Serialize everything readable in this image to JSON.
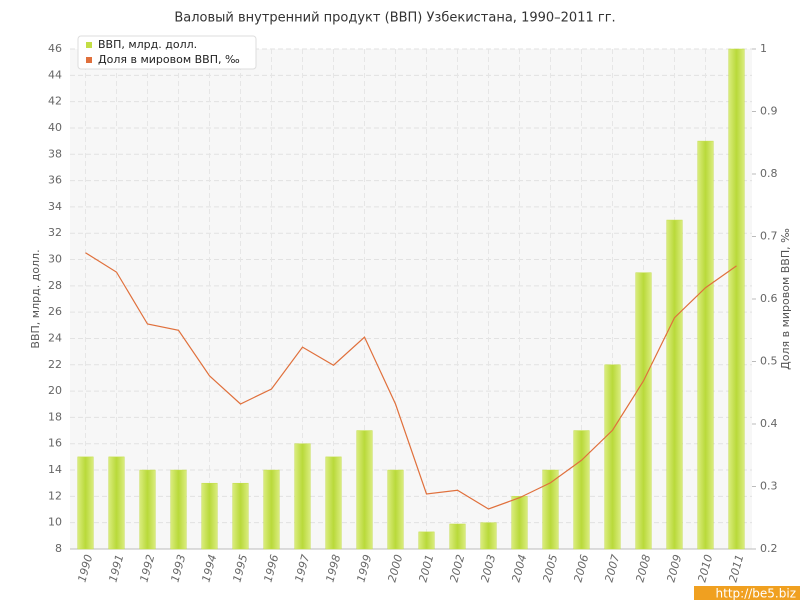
{
  "chart_data": {
    "type": "bar",
    "title": "Валовый внутренний продукт (ВВП) Узбекистана, 1990–2011 гг.",
    "y_label": "ВВП, млрд. долл.",
    "y2_label": "Доля в мировом ВВП, ‰",
    "categories": [
      "1990",
      "1991",
      "1992",
      "1993",
      "1994",
      "1995",
      "1996",
      "1997",
      "1998",
      "1999",
      "2000",
      "2001",
      "2002",
      "2003",
      "2004",
      "2005",
      "2006",
      "2007",
      "2008",
      "2009",
      "2010",
      "2011"
    ],
    "series": [
      {
        "name": "ВВП, млрд. долл.",
        "type": "bar",
        "color": "#c3de45",
        "values": [
          15,
          15,
          14,
          14,
          13,
          13,
          14,
          16,
          15,
          17,
          14,
          9.3,
          9.9,
          10,
          12,
          14,
          17,
          22,
          29,
          33,
          39,
          46
        ]
      },
      {
        "name": "Доля в мировом ВВП, ‰",
        "type": "line",
        "axis": "y2",
        "color": "#e0703c",
        "values": [
          0.674,
          0.643,
          0.56,
          0.55,
          0.477,
          0.432,
          0.456,
          0.523,
          0.494,
          0.539,
          0.432,
          0.288,
          0.294,
          0.264,
          0.282,
          0.306,
          0.342,
          0.39,
          0.469,
          0.57,
          0.618,
          0.653
        ]
      }
    ],
    "ylim": [
      8,
      46
    ],
    "yticks": [
      8,
      10,
      12,
      14,
      16,
      18,
      20,
      22,
      24,
      26,
      28,
      30,
      32,
      34,
      36,
      38,
      40,
      42,
      44,
      46
    ],
    "y2lim": [
      0.2,
      1
    ],
    "y2ticks": [
      0.2,
      0.3,
      0.4,
      0.5,
      0.6,
      0.7,
      0.8,
      0.9,
      1
    ],
    "grid": true,
    "legend": "top-left",
    "watermark": "http://be5.biz"
  }
}
